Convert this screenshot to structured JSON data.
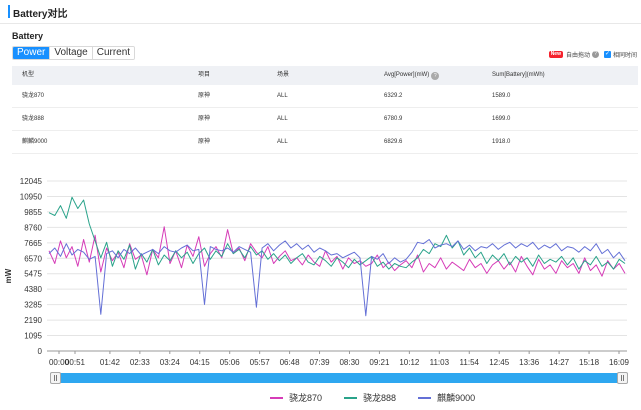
{
  "header": {
    "title": "Battery对比"
  },
  "section": {
    "title": "Battery"
  },
  "tabs": [
    {
      "label": "Power",
      "active": true
    },
    {
      "label": "Voltage",
      "active": false
    },
    {
      "label": "Current",
      "active": false
    }
  ],
  "options": {
    "new_badge": "New",
    "free_drag": "自由拖动",
    "same_time": "相同时间"
  },
  "table": {
    "headers": [
      "机型",
      "项目",
      "场景",
      "Avg[Power](mW)",
      "Sum[Battery](mWh)"
    ],
    "rows": [
      [
        "骁龙870",
        "原神",
        "ALL",
        "6329.2",
        "1589.0"
      ],
      [
        "骁龙888",
        "原神",
        "ALL",
        "6780.9",
        "1699.0"
      ],
      [
        "麒麟9000",
        "原神",
        "ALL",
        "6829.6",
        "1918.0"
      ]
    ]
  },
  "chart_data": {
    "type": "line",
    "ylabel": "mW",
    "xlabel": "",
    "ylim": [
      0,
      12045
    ],
    "y_ticks": [
      "12045",
      "10950",
      "9855",
      "8760",
      "7665",
      "6570",
      "5475",
      "4380",
      "3285",
      "2190",
      "1095",
      "0"
    ],
    "x_ticks": [
      "00:00",
      "00:51",
      "01:42",
      "02:33",
      "03:24",
      "04:15",
      "05:06",
      "05:57",
      "06:48",
      "07:39",
      "08:30",
      "09:21",
      "10:12",
      "11:03",
      "11:54",
      "12:45",
      "13:36",
      "14:27",
      "15:18",
      "16:09"
    ],
    "grid": true,
    "legend_position": "bottom",
    "series": [
      {
        "name": "骁龙870",
        "color": "#d63cb8",
        "values": [
          7100,
          6200,
          7800,
          6600,
          7400,
          6000,
          7900,
          6300,
          8200,
          5600,
          7300,
          6400,
          7000,
          5900,
          7600,
          6500,
          6800,
          5400,
          7200,
          6600,
          8800,
          6200,
          7100,
          5900,
          7500,
          6700,
          8100,
          6000,
          6900,
          7400,
          6600,
          8600,
          6900,
          7300,
          6400,
          7600,
          7000,
          6600,
          7400,
          6200,
          6700,
          7100,
          6400,
          6600,
          6100,
          6800,
          6300,
          6000,
          7100,
          6300,
          6700,
          5800,
          6600,
          6200,
          6400,
          6000,
          6200,
          6800,
          5900,
          6300,
          5700,
          6100,
          6400,
          5900,
          6800,
          5600,
          6200,
          5900,
          6600,
          5800,
          6300,
          6000,
          5700,
          6500,
          5900,
          6200,
          5500,
          6100,
          6400,
          5800,
          6300,
          5600,
          6700,
          6000,
          5400,
          6500,
          5800,
          6100,
          5500,
          6400,
          5900,
          6200,
          5500,
          6600,
          5700,
          6100,
          5300,
          6400,
          5800,
          6200,
          5500
        ]
      },
      {
        "name": "骁龙888",
        "color": "#2aa38a",
        "values": [
          9800,
          9600,
          10300,
          9400,
          10900,
          10100,
          10700,
          9000,
          7800,
          6600,
          7700,
          6000,
          7100,
          6500,
          7500,
          5800,
          6900,
          6300,
          7200,
          6100,
          6800,
          6400,
          7100,
          6600,
          7000,
          6200,
          6900,
          7300,
          6500,
          7100,
          6700,
          7600,
          6900,
          7200,
          6600,
          7400,
          6800,
          7100,
          6500,
          6900,
          6400,
          6800,
          6200,
          6600,
          6900,
          6300,
          6100,
          6700,
          6400,
          6000,
          6600,
          6300,
          5900,
          6500,
          6100,
          6400,
          6700,
          6000,
          6300,
          5800,
          6200,
          6000,
          5900,
          6300,
          6600,
          7200,
          6900,
          7600,
          7400,
          8200,
          7300,
          7800,
          6800,
          7300,
          6600,
          7000,
          6200,
          6800,
          6400,
          6900,
          6100,
          6700,
          6300,
          6600,
          6000,
          6800,
          6200,
          6500,
          6300,
          6700,
          6100,
          6600,
          5800,
          6400,
          6100,
          6700,
          6000,
          6300,
          5800,
          6500,
          6200
        ]
      },
      {
        "name": "麒麟9000",
        "color": "#6470d6",
        "values": [
          6900,
          7300,
          6700,
          7600,
          6800,
          7200,
          7000,
          6500,
          6700,
          2600,
          6900,
          7100,
          6600,
          7200,
          6900,
          7300,
          6800,
          7000,
          7200,
          6900,
          7400,
          7100,
          7000,
          7300,
          7500,
          7100,
          7200,
          3300,
          7400,
          7200,
          7100,
          7300,
          7000,
          7400,
          7200,
          7000,
          3100,
          7300,
          7600,
          7100,
          7500,
          7800,
          7300,
          7600,
          7200,
          7500,
          7000,
          7300,
          7100,
          6800,
          6900,
          6600,
          6800,
          7000,
          6600,
          2500,
          6700,
          6500,
          6900,
          6200,
          6600,
          6300,
          6500,
          7000,
          7700,
          7600,
          7900,
          7300,
          7500,
          7600,
          7400,
          7800,
          7200,
          7500,
          7100,
          7400,
          7300,
          7600,
          7200,
          7500,
          7700,
          7300,
          7600,
          7400,
          7700,
          7200,
          7500,
          7300,
          7600,
          7100,
          7400,
          7300,
          7000,
          7400,
          7100,
          7600,
          6900,
          7200,
          6600,
          7000,
          6400
        ]
      }
    ]
  },
  "zoom": {
    "start": 0,
    "end": 1
  }
}
